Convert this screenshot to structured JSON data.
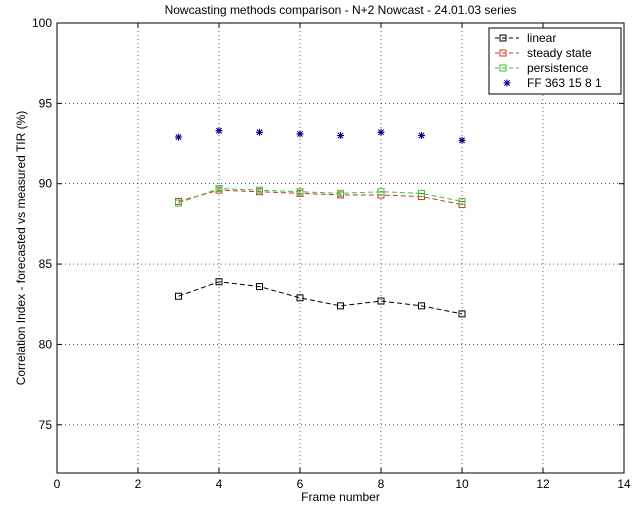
{
  "chart_data": {
    "type": "line",
    "title": "Nowcasting methods comparison - N+2 Nowcast - 24.01.03 series",
    "xlabel": "Frame number",
    "ylabel": "Correlation Index - forecasted vs measured TIR (%)",
    "xlim": [
      0,
      14
    ],
    "ylim": [
      72,
      100
    ],
    "xticks": [
      0,
      2,
      4,
      6,
      8,
      10,
      12,
      14
    ],
    "yticks": [
      75,
      80,
      85,
      90,
      95,
      100
    ],
    "grid": "dotted",
    "legend_position": "top-right",
    "x": [
      3,
      4,
      5,
      6,
      7,
      8,
      9,
      10
    ],
    "series": [
      {
        "name": "linear",
        "color": "#000000",
        "marker": "square",
        "line": "dashed",
        "values": [
          83.0,
          83.9,
          83.6,
          82.9,
          82.4,
          82.7,
          82.4,
          81.9
        ]
      },
      {
        "name": "steady state",
        "color": "#c0392b",
        "marker": "square",
        "line": "dashed",
        "values": [
          88.9,
          89.6,
          89.5,
          89.4,
          89.3,
          89.3,
          89.2,
          88.7
        ]
      },
      {
        "name": "persistence",
        "color": "#3fbf3f",
        "marker": "square",
        "line": "dashed",
        "values": [
          88.8,
          89.7,
          89.6,
          89.5,
          89.4,
          89.5,
          89.4,
          88.9
        ]
      },
      {
        "name": "FF 363 15 8 1",
        "color": "#00008b",
        "marker": "asterisk",
        "line": "none",
        "values": [
          92.9,
          93.3,
          93.2,
          93.1,
          93.0,
          93.2,
          93.0,
          92.7
        ]
      }
    ]
  }
}
